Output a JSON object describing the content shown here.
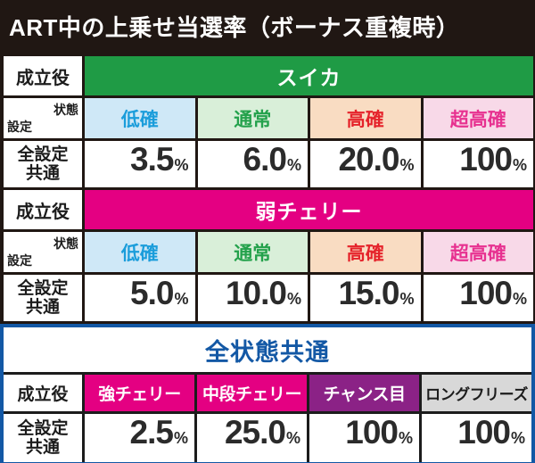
{
  "title": "ART中の上乗せ当選率（ボーナス重複時）",
  "labels": {
    "role": "成立役",
    "state": "状態",
    "setting": "設定",
    "all_settings_line1": "全設定",
    "all_settings_line2": "共通",
    "percent": "%"
  },
  "tables": [
    {
      "role_value": "スイカ",
      "states": [
        "低確",
        "通常",
        "高確",
        "超高確"
      ],
      "values": [
        "3.5",
        "6.0",
        "20.0",
        "100"
      ]
    },
    {
      "role_value": "弱チェリー",
      "states": [
        "低確",
        "通常",
        "高確",
        "超高確"
      ],
      "values": [
        "5.0",
        "10.0",
        "15.0",
        "100"
      ]
    }
  ],
  "all_states": {
    "header": "全状態共通",
    "categories": [
      "強チェリー",
      "中段チェリー",
      "チャンス目",
      "ロングフリーズ"
    ],
    "values": [
      "2.5",
      "25.0",
      "100",
      "100"
    ]
  },
  "colors": {
    "page_background": "#201713",
    "suika_green": "#1f9b45",
    "cherry_magenta": "#e40082",
    "chance_purple": "#8b2286",
    "freeze_gray": "#d8d8d8",
    "blue_accent": "#1358a5",
    "low_bg": "#cfe8f7",
    "low_text": "#1b9ddb",
    "normal_bg": "#d9efd9",
    "normal_text": "#23a14b",
    "high_bg": "#f9dcc2",
    "high_text": "#e5232b",
    "super_bg": "#f8d9e8",
    "super_text": "#e73190"
  }
}
